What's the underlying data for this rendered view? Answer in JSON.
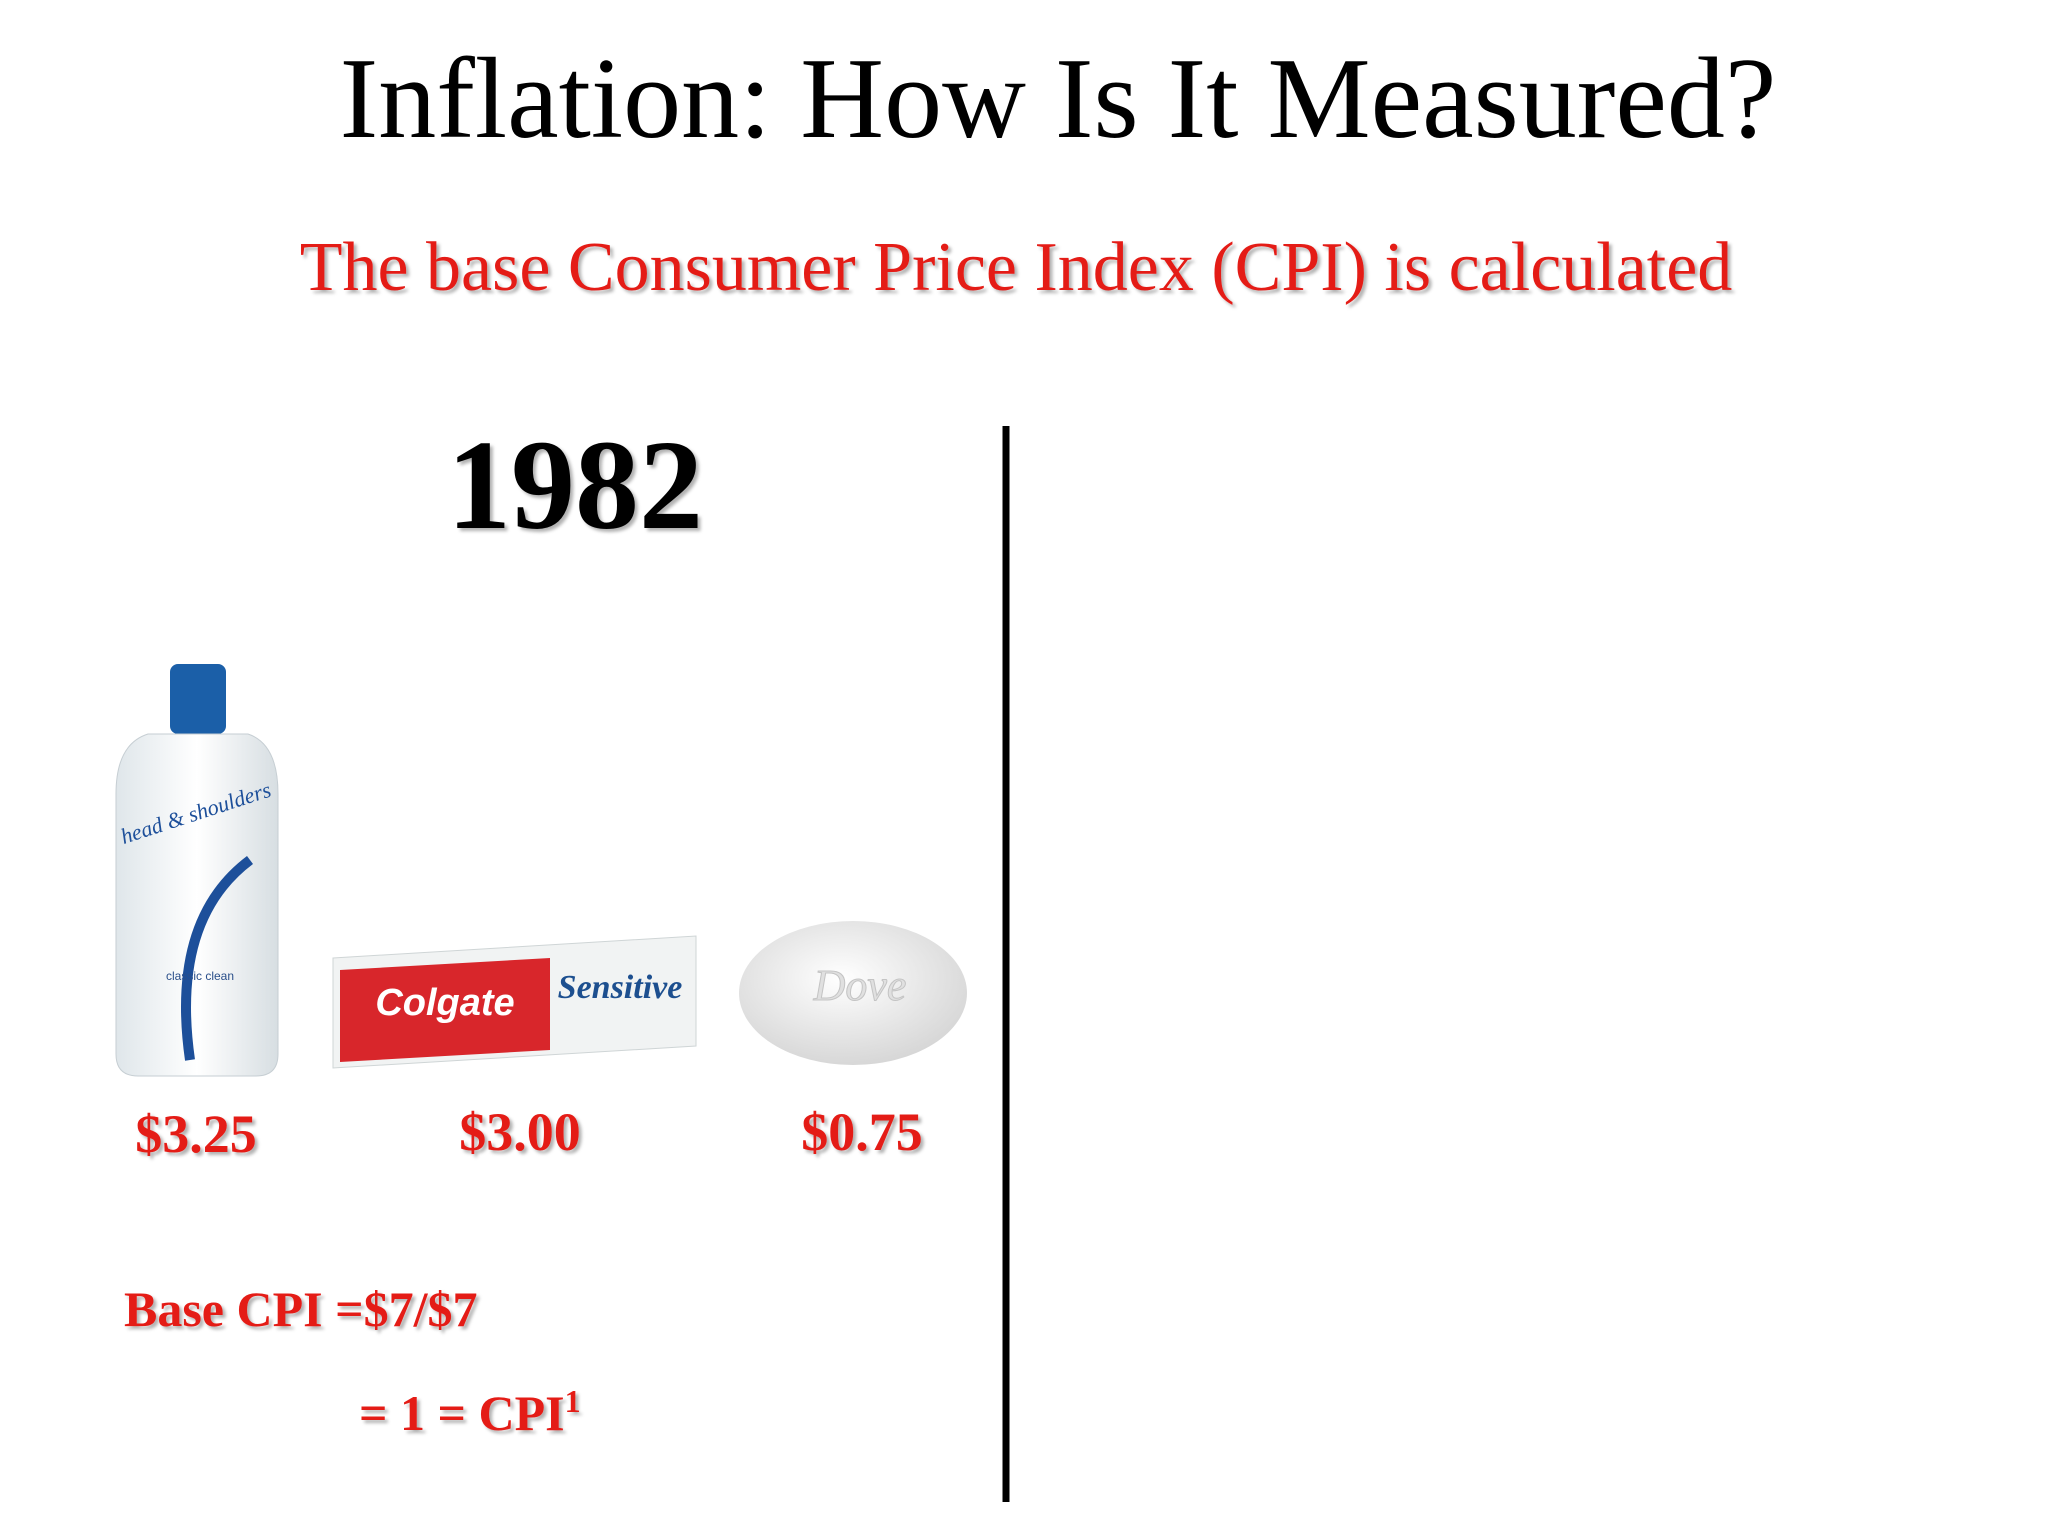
{
  "slide": {
    "title": "Inflation: How Is It Measured?",
    "subtitle": "The base Consumer Price Index (CPI) is calculated",
    "year": "1982",
    "products": [
      {
        "brand": "head & shoulders",
        "variant": "classic clean",
        "price": "$3.25"
      },
      {
        "brand": "Colgate",
        "variant": "Sensitive",
        "price": "$3.00"
      },
      {
        "brand": "Dove",
        "price": "$0.75"
      }
    ],
    "formula": {
      "line1": "Base CPI =$7/$7",
      "line2": "= 1 = CPI",
      "line2_superscript": "1"
    }
  }
}
